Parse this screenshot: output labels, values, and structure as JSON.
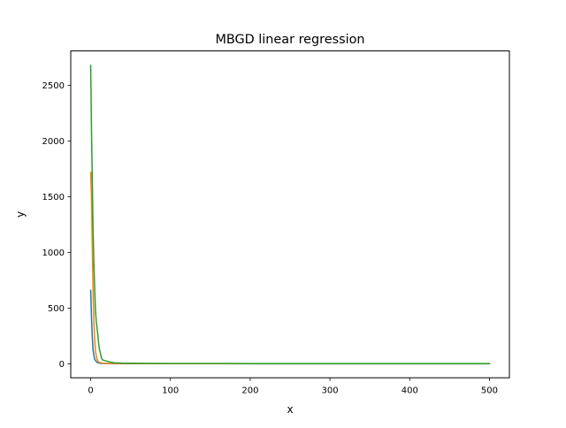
{
  "chart_data": {
    "type": "line",
    "title": "MBGD linear regression",
    "xlabel": "x",
    "ylabel": "y",
    "xlim": [
      -25,
      525
    ],
    "ylim": [
      -125,
      2810
    ],
    "xticks": [
      0,
      100,
      200,
      300,
      400,
      500
    ],
    "yticks": [
      0,
      500,
      1000,
      1500,
      2000,
      2500
    ],
    "grid": false,
    "legend": "none",
    "series": [
      {
        "color": "#1f77b4",
        "points": [
          [
            0,
            660
          ],
          [
            1,
            420
          ],
          [
            2,
            240
          ],
          [
            3,
            120
          ],
          [
            5,
            40
          ],
          [
            8,
            12
          ],
          [
            12,
            5
          ],
          [
            20,
            3
          ],
          [
            50,
            2
          ],
          [
            100,
            1.5
          ],
          [
            200,
            1
          ],
          [
            300,
            1
          ],
          [
            400,
            1
          ],
          [
            500,
            1
          ]
        ]
      },
      {
        "color": "#ff7f0e",
        "points": [
          [
            0,
            1720
          ],
          [
            1,
            1500
          ],
          [
            2,
            1050
          ],
          [
            3,
            650
          ],
          [
            4,
            380
          ],
          [
            5,
            220
          ],
          [
            6,
            110
          ],
          [
            8,
            40
          ],
          [
            10,
            15
          ],
          [
            15,
            6
          ],
          [
            25,
            4
          ],
          [
            50,
            3
          ],
          [
            100,
            2
          ],
          [
            200,
            2
          ],
          [
            300,
            1.5
          ],
          [
            400,
            1.5
          ],
          [
            500,
            1.5
          ]
        ]
      },
      {
        "color": "#2ca02c",
        "points": [
          [
            0,
            2680
          ],
          [
            1,
            2100
          ],
          [
            2,
            1650
          ],
          [
            3,
            1200
          ],
          [
            4,
            900
          ],
          [
            5,
            680
          ],
          [
            6,
            480
          ],
          [
            7,
            380
          ],
          [
            8,
            320
          ],
          [
            9,
            260
          ],
          [
            10,
            180
          ],
          [
            11,
            130
          ],
          [
            12,
            100
          ],
          [
            13,
            70
          ],
          [
            14,
            45
          ],
          [
            15,
            35
          ],
          [
            20,
            25
          ],
          [
            25,
            15
          ],
          [
            30,
            10
          ],
          [
            40,
            7
          ],
          [
            60,
            5
          ],
          [
            100,
            4
          ],
          [
            200,
            3
          ],
          [
            300,
            3
          ],
          [
            400,
            3
          ],
          [
            500,
            3
          ]
        ]
      }
    ]
  }
}
